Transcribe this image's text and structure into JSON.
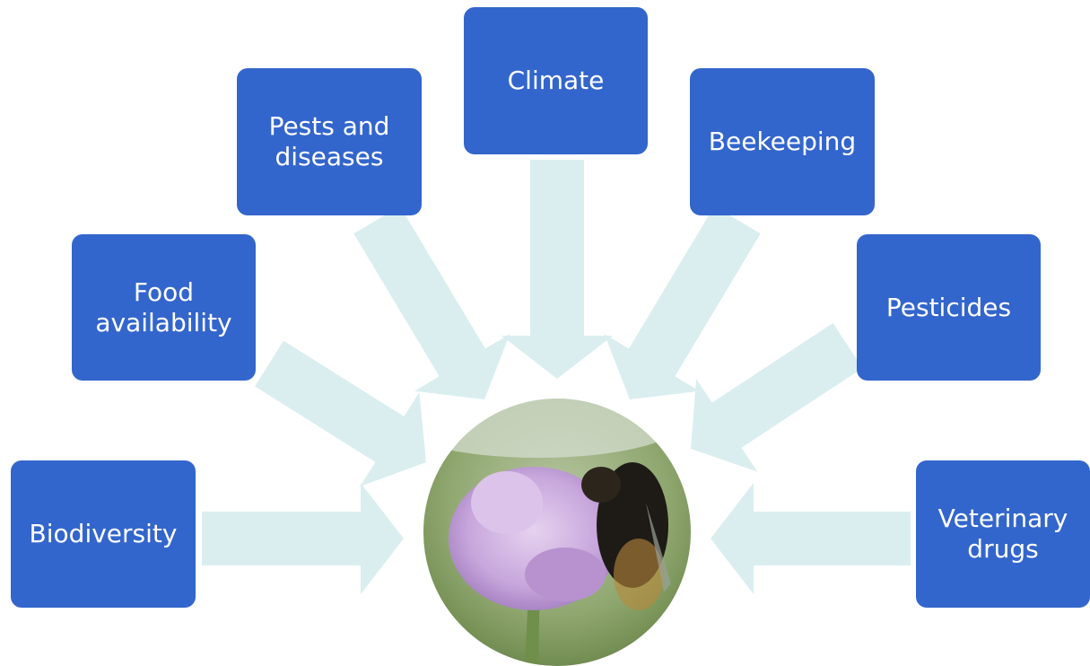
{
  "nodes": [
    {
      "label": "Biodiversity"
    },
    {
      "label": "Food availability"
    },
    {
      "label": "Pests and diseases"
    },
    {
      "label": "Climate"
    },
    {
      "label": "Beekeeping"
    },
    {
      "label": "Pesticides"
    },
    {
      "label": "Veterinary drugs"
    }
  ]
}
